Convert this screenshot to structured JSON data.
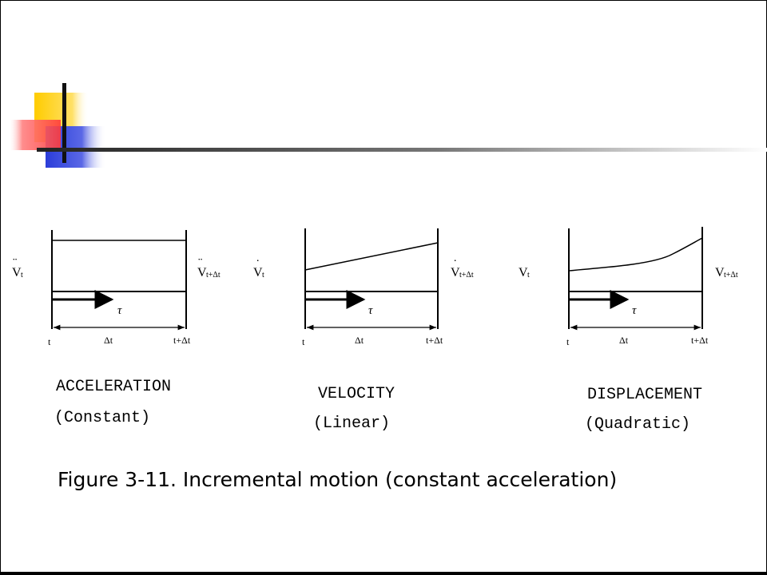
{
  "colors": {
    "yellow": "#ffcc00",
    "red": "#ff3b3b",
    "blue": "#2b3dd9",
    "ink": "#000000",
    "rule": "#555555"
  },
  "panels": [
    {
      "title": "ACCELERATION",
      "subtitle": "(Constant)",
      "curve": "constant",
      "left_label": {
        "symbol": "V",
        "dots": "¨",
        "sub": "t"
      },
      "right_label": {
        "symbol": "V",
        "dots": "¨",
        "sub": "t+Δt"
      },
      "tau": "τ",
      "tick_start": "t",
      "tick_mid": "Δt",
      "tick_end": "t+Δt"
    },
    {
      "title": "VELOCITY",
      "subtitle": "(Linear)",
      "curve": "linear",
      "left_label": {
        "symbol": "V",
        "dots": "˙",
        "sub": "t"
      },
      "right_label": {
        "symbol": "V",
        "dots": "˙",
        "sub": "t+Δt"
      },
      "tau": "τ",
      "tick_start": "t",
      "tick_mid": "Δt",
      "tick_end": "t+Δt"
    },
    {
      "title": "DISPLACEMENT",
      "subtitle": "(Quadratic)",
      "curve": "quadratic",
      "left_label": {
        "symbol": "V",
        "dots": "",
        "sub": "t"
      },
      "right_label": {
        "symbol": "V",
        "dots": "",
        "sub": "t+Δt"
      },
      "tau": "τ",
      "tick_start": "t",
      "tick_mid": "Δt",
      "tick_end": "t+Δt"
    }
  ],
  "caption": "Figure 3-11. Incremental motion (constant acceleration)"
}
